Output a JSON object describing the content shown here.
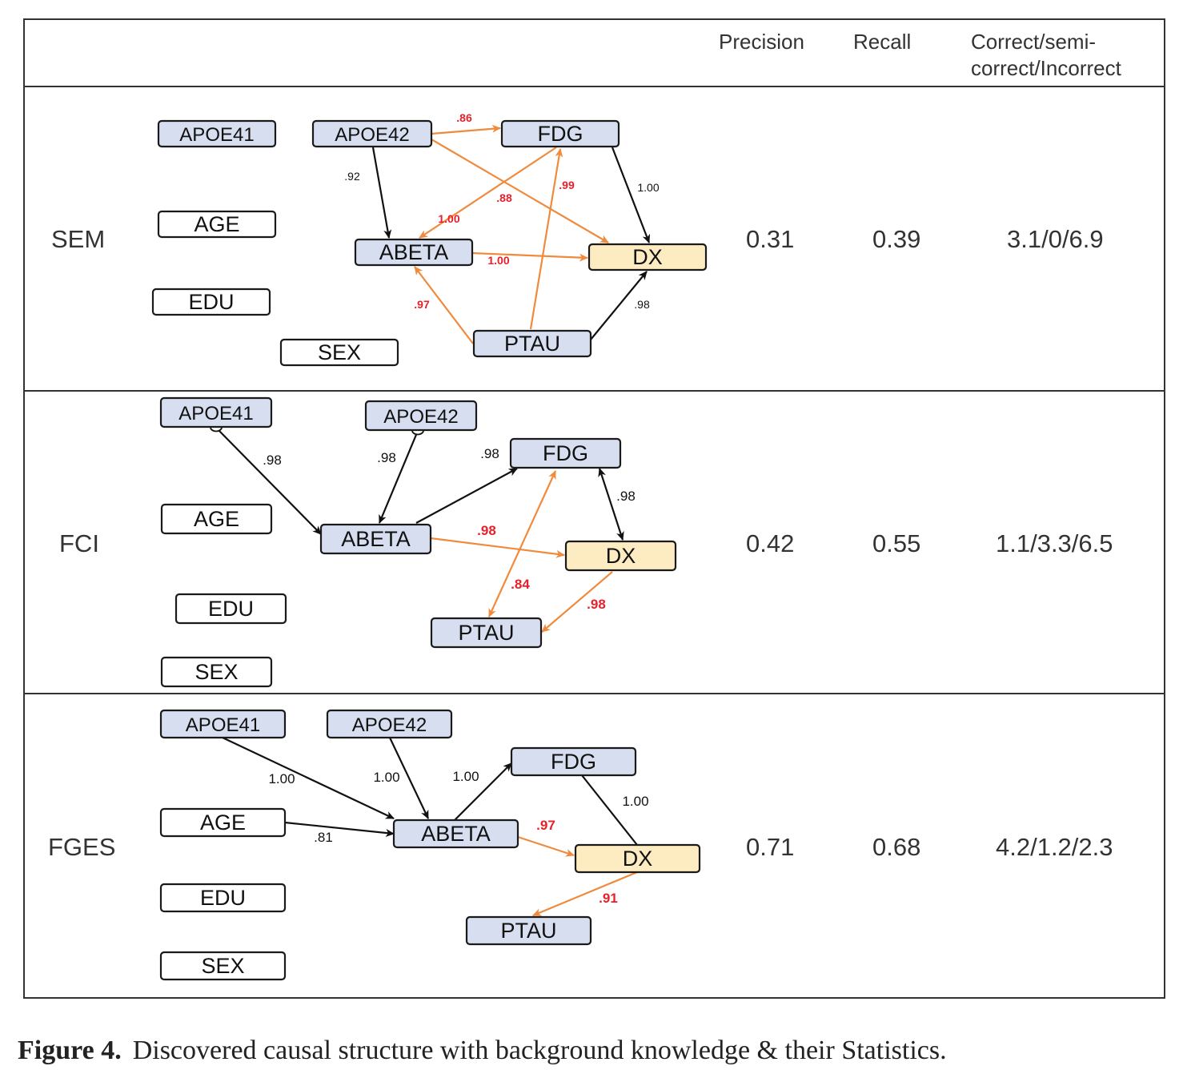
{
  "header": {
    "precision": "Precision",
    "recall": "Recall",
    "ccr_line1": "Correct/semi-",
    "ccr_line2": "correct/Incorrect"
  },
  "colors": {
    "black": "#111111",
    "orange": "#f08a3c",
    "red": "#e8202a",
    "blue_fill": "#d6def0",
    "dx_fill": "#fdebc2"
  },
  "rows": [
    {
      "name": "SEM",
      "precision": "0.31",
      "recall": "0.39",
      "ccr": "3.1/0/6.9",
      "nodes": {
        "APOE41": {
          "label": "APOE41",
          "fill": "blue"
        },
        "APOE42": {
          "label": "APOE42",
          "fill": "blue"
        },
        "FDG": {
          "label": "FDG",
          "fill": "blue"
        },
        "AGE": {
          "label": "AGE",
          "fill": "none"
        },
        "ABETA": {
          "label": "ABETA",
          "fill": "blue"
        },
        "DX": {
          "label": "DX",
          "fill": "dx"
        },
        "EDU": {
          "label": "EDU",
          "fill": "none"
        },
        "PTAU": {
          "label": "PTAU",
          "fill": "blue"
        },
        "SEX": {
          "label": "SEX",
          "fill": "none"
        }
      },
      "edges": [
        {
          "from": "APOE42",
          "to": "FDG",
          "color": "orange",
          "label": ".86",
          "label_color": "red"
        },
        {
          "from": "APOE42",
          "to": "ABETA",
          "color": "black",
          "label": ".92",
          "label_color": "black"
        },
        {
          "from": "APOE42",
          "to": "DX",
          "color": "orange",
          "label": ".88",
          "label_color": "red"
        },
        {
          "from": "FDG",
          "to": "ABETA",
          "color": "orange",
          "label": "1.00",
          "label_color": "red"
        },
        {
          "from": "FDG",
          "to": "DX",
          "color": "black",
          "label": "1.00",
          "label_color": "black"
        },
        {
          "from": "PTAU",
          "to": "FDG",
          "color": "orange",
          "label": ".99",
          "label_color": "red"
        },
        {
          "from": "ABETA",
          "to": "DX",
          "color": "orange",
          "label": "1.00",
          "label_color": "red"
        },
        {
          "from": "PTAU",
          "to": "ABETA",
          "color": "orange",
          "label": ".97",
          "label_color": "red"
        },
        {
          "from": "PTAU",
          "to": "DX",
          "color": "black",
          "label": ".98",
          "label_color": "black"
        }
      ]
    },
    {
      "name": "FCI",
      "precision": "0.42",
      "recall": "0.55",
      "ccr": "1.1/3.3/6.5",
      "nodes": {
        "APOE41": {
          "label": "APOE41",
          "fill": "blue"
        },
        "APOE42": {
          "label": "APOE42",
          "fill": "blue"
        },
        "FDG": {
          "label": "FDG",
          "fill": "blue"
        },
        "AGE": {
          "label": "AGE",
          "fill": "none"
        },
        "ABETA": {
          "label": "ABETA",
          "fill": "blue"
        },
        "DX": {
          "label": "DX",
          "fill": "dx"
        },
        "EDU": {
          "label": "EDU",
          "fill": "none"
        },
        "PTAU": {
          "label": "PTAU",
          "fill": "blue"
        },
        "SEX": {
          "label": "SEX",
          "fill": "none"
        }
      },
      "edges": [
        {
          "from": "APOE41",
          "to": "ABETA",
          "color": "black",
          "label": ".98",
          "label_color": "black",
          "tail": "circle"
        },
        {
          "from": "APOE42",
          "to": "ABETA",
          "color": "black",
          "label": ".98",
          "label_color": "black",
          "tail": "circle"
        },
        {
          "from": "ABETA",
          "to": "FDG",
          "color": "black",
          "label": ".98",
          "label_color": "black"
        },
        {
          "from": "FDG",
          "to": "DX",
          "color": "black",
          "label": ".98",
          "label_color": "black",
          "both": true
        },
        {
          "from": "ABETA",
          "to": "DX",
          "color": "orange",
          "label": ".98",
          "label_color": "red"
        },
        {
          "from": "FDG",
          "to": "PTAU",
          "color": "orange",
          "label": ".84",
          "label_color": "red",
          "both": true
        },
        {
          "from": "DX",
          "to": "PTAU",
          "color": "orange",
          "label": ".98",
          "label_color": "red"
        }
      ]
    },
    {
      "name": "FGES",
      "precision": "0.71",
      "recall": "0.68",
      "ccr": "4.2/1.2/2.3",
      "nodes": {
        "APOE41": {
          "label": "APOE41",
          "fill": "blue"
        },
        "APOE42": {
          "label": "APOE42",
          "fill": "blue"
        },
        "FDG": {
          "label": "FDG",
          "fill": "blue"
        },
        "AGE": {
          "label": "AGE",
          "fill": "none"
        },
        "ABETA": {
          "label": "ABETA",
          "fill": "blue"
        },
        "DX": {
          "label": "DX",
          "fill": "dx"
        },
        "EDU": {
          "label": "EDU",
          "fill": "none"
        },
        "PTAU": {
          "label": "PTAU",
          "fill": "blue"
        },
        "SEX": {
          "label": "SEX",
          "fill": "none"
        }
      },
      "edges": [
        {
          "from": "APOE41",
          "to": "ABETA",
          "color": "black",
          "label": "1.00",
          "label_color": "black"
        },
        {
          "from": "APOE42",
          "to": "ABETA",
          "color": "black",
          "label": "1.00",
          "label_color": "black"
        },
        {
          "from": "ABETA",
          "to": "FDG",
          "color": "black",
          "label": "1.00",
          "label_color": "black"
        },
        {
          "from": "FDG",
          "to": "DX",
          "color": "black",
          "label": "1.00",
          "label_color": "black",
          "noarrow": true
        },
        {
          "from": "AGE",
          "to": "ABETA",
          "color": "black",
          "label": ".81",
          "label_color": "black"
        },
        {
          "from": "ABETA",
          "to": "DX",
          "color": "orange",
          "label": ".97",
          "label_color": "red"
        },
        {
          "from": "DX",
          "to": "PTAU",
          "color": "orange",
          "label": ".91",
          "label_color": "red"
        }
      ]
    }
  ],
  "caption": {
    "label": "Figure 4.",
    "text": "Discovered causal structure with background knowledge & their Statistics."
  }
}
